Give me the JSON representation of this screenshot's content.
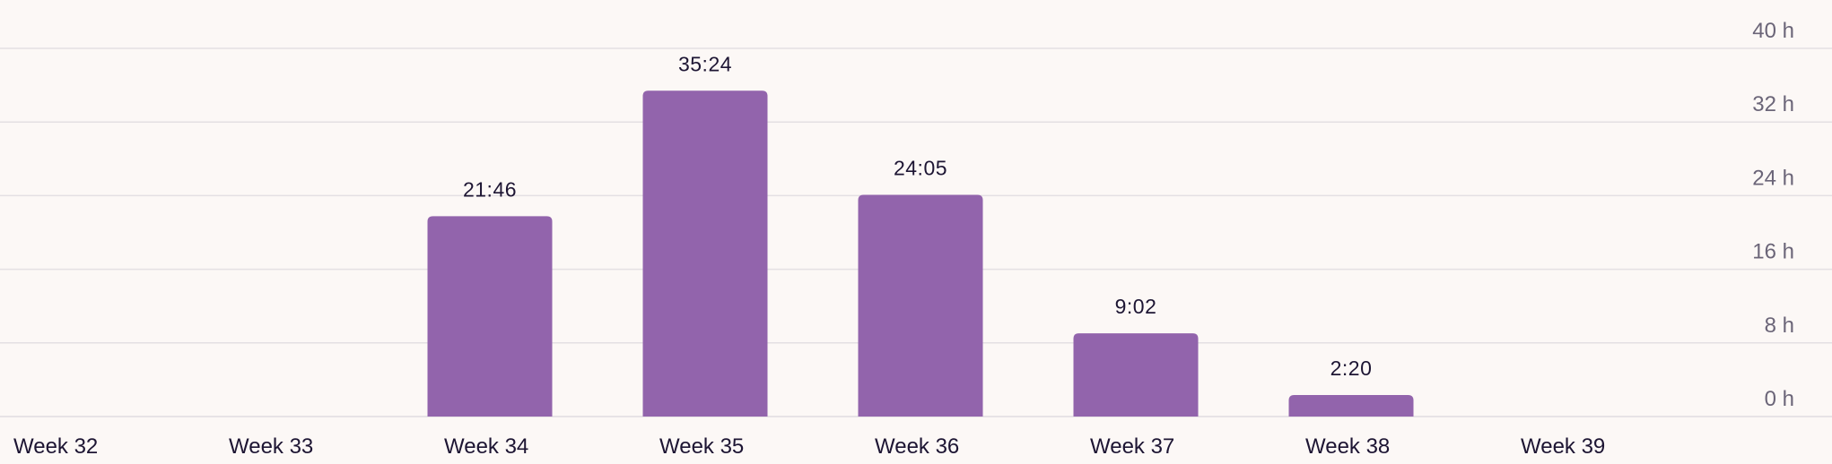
{
  "chart_data": {
    "type": "bar",
    "categories": [
      "Week 32",
      "Week 33",
      "Week 34",
      "Week 35",
      "Week 36",
      "Week 37",
      "Week 38",
      "Week 39"
    ],
    "values": [
      0,
      0,
      21.7667,
      35.4,
      24.0833,
      9.0333,
      2.3333,
      0
    ],
    "value_labels": [
      "",
      "",
      "21:46",
      "35:24",
      "24:05",
      "9:02",
      "2:20",
      ""
    ],
    "y_ticks": [
      0,
      8,
      16,
      24,
      32,
      40
    ],
    "y_tick_labels": [
      "0 h",
      "8 h",
      "16 h",
      "24 h",
      "32 h",
      "40 h"
    ],
    "ylim": [
      0,
      40
    ],
    "grid": true,
    "y_axis_position": "right",
    "colors": {
      "bar": "#9264ac",
      "grid": "#e4e0e3",
      "background": "#fcf8f6",
      "label_text": "#1d1533",
      "tick_text": "#6b6578"
    }
  }
}
